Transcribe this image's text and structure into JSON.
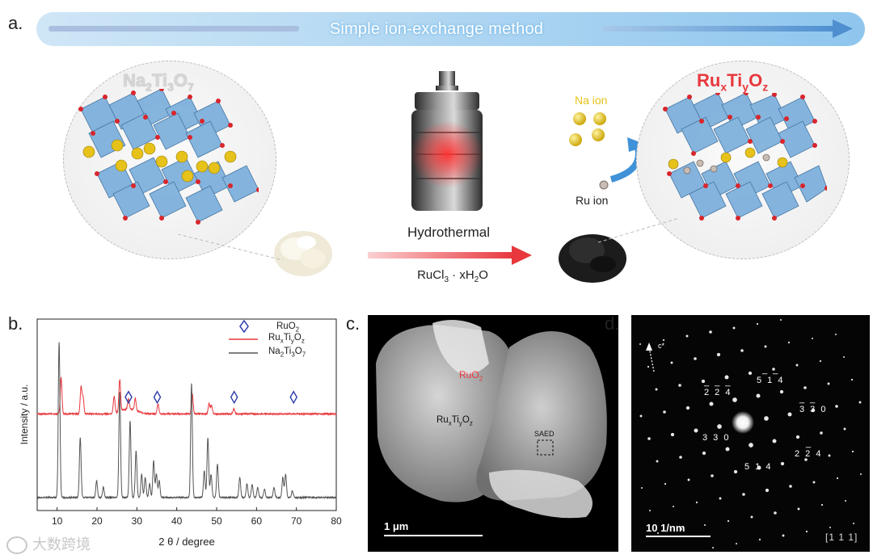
{
  "panel_a": {
    "letter": "a.",
    "banner_text": "Simple ion-exchange method",
    "left_formula": {
      "t1": "Na",
      "s1": "2",
      "t2": "Ti",
      "s2": "3",
      "t3": "O",
      "s3": "7"
    },
    "right_formula": {
      "t1": "Ru",
      "s1": "x",
      "t2": "Ti",
      "s2": "y",
      "t3": "O",
      "s3": "z"
    },
    "hydrothermal": "Hydrothermal",
    "reagent": {
      "t1": "RuCl",
      "s1": "3",
      "t2": " · xH",
      "s2": "2",
      "t3": "O"
    },
    "na_ion": "Na ion",
    "ru_ion": "Ru ion",
    "colors": {
      "banner": "#5aa8e0",
      "na_formula": "#d8d8d8",
      "ru_formula": "#e8383d",
      "na_ion": "#e6c21a",
      "arrow": "#e8383d"
    }
  },
  "panel_b": {
    "letter": "b.",
    "legend": {
      "ruo2": {
        "t1": "RuO",
        "s1": "2"
      },
      "ruxtiyoz": {
        "t1": "Ru",
        "s1": "x",
        "t2": "Ti",
        "s2": "y",
        "t3": "O",
        "s3": "z"
      },
      "na2ti3o7": {
        "t1": "Na",
        "s1": "2",
        "t2": "Ti",
        "s2": "3",
        "t3": "O",
        "s3": "7"
      }
    }
  },
  "chart_data": {
    "type": "line",
    "xlabel": "2 θ / degree",
    "ylabel": "Intensity / a.u.",
    "xlim": [
      5,
      80
    ],
    "xticks": [
      10,
      20,
      30,
      40,
      50,
      60,
      70,
      80
    ],
    "series": [
      {
        "name": "RuxTiyOz",
        "color": "#e8383d",
        "baseline": 0.52,
        "peaks": [
          [
            11.0,
            0.22
          ],
          [
            16.0,
            0.16
          ],
          [
            16.5,
            0.1
          ],
          [
            24.3,
            0.1
          ],
          [
            25.7,
            0.19
          ],
          [
            27.9,
            0.06
          ],
          [
            29.6,
            0.07
          ],
          [
            35.3,
            0.06
          ],
          [
            43.9,
            0.12
          ],
          [
            48.1,
            0.06
          ],
          [
            48.7,
            0.05
          ],
          [
            54.3,
            0.03
          ]
        ]
      },
      {
        "name": "Na2Ti3O7",
        "color": "#555555",
        "baseline": 0.02,
        "peaks": [
          [
            10.5,
            0.93
          ],
          [
            15.8,
            0.36
          ],
          [
            19.9,
            0.1
          ],
          [
            21.6,
            0.06
          ],
          [
            25.7,
            0.63
          ],
          [
            28.3,
            0.46
          ],
          [
            29.8,
            0.28
          ],
          [
            31.2,
            0.14
          ],
          [
            32.1,
            0.12
          ],
          [
            33.2,
            0.08
          ],
          [
            34.2,
            0.22
          ],
          [
            34.9,
            0.14
          ],
          [
            35.6,
            0.1
          ],
          [
            43.7,
            0.68
          ],
          [
            46.9,
            0.16
          ],
          [
            47.8,
            0.36
          ],
          [
            48.6,
            0.14
          ],
          [
            50.2,
            0.2
          ],
          [
            55.8,
            0.12
          ],
          [
            57.6,
            0.08
          ],
          [
            58.9,
            0.08
          ],
          [
            60.3,
            0.06
          ],
          [
            62.0,
            0.05
          ],
          [
            64.4,
            0.06
          ],
          [
            66.6,
            0.12
          ],
          [
            67.3,
            0.14
          ],
          [
            69.0,
            0.04
          ]
        ]
      }
    ],
    "markers": {
      "name": "RuO2",
      "symbol": "diamond",
      "color": "#2a3aa8",
      "x": [
        27.9,
        35.1,
        54.4,
        69.3
      ]
    }
  },
  "panel_c": {
    "letter": "c.",
    "ruo2": {
      "t1": "RuO",
      "s1": "2"
    },
    "ruxtiyoz": {
      "t1": "Ru",
      "s1": "x",
      "t2": "Ti",
      "s2": "y",
      "t3": "O",
      "s3": "z"
    },
    "saed": "SAED",
    "scale": "1 μm"
  },
  "panel_d": {
    "letter": "d.",
    "c_axis": "c*",
    "spots": [
      "2 2 4",
      "5 1 4",
      "3 3 0",
      "3 3 0",
      "2 2 4",
      "5 1 4"
    ],
    "bars": [
      "_ _ _",
      "_ _",
      "_ _",
      "",
      "_",
      ""
    ],
    "scale": "10 1/nm",
    "zone_axis": "[1 1 1]"
  },
  "watermark": "大数跨境"
}
